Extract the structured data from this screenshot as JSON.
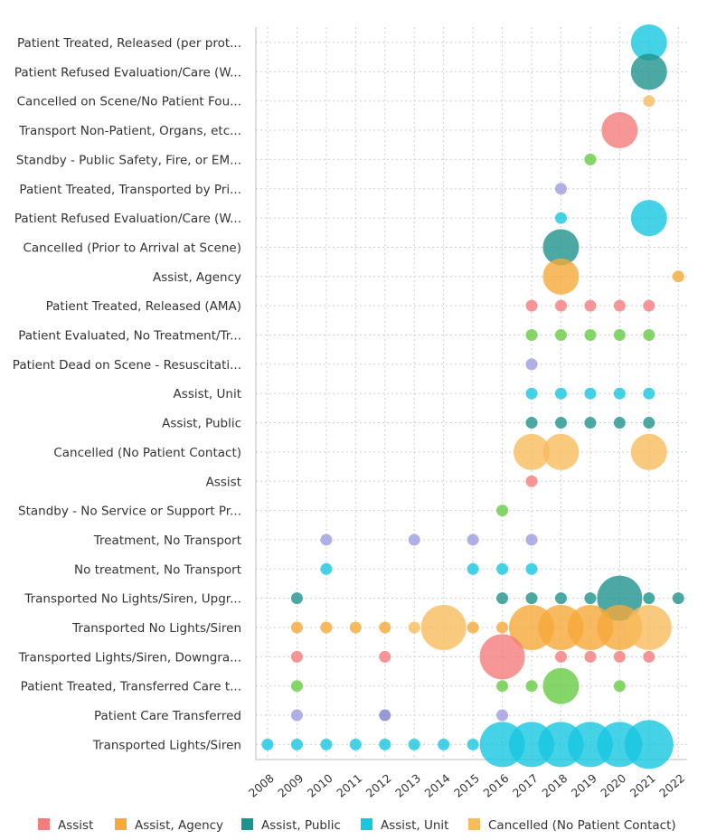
{
  "chart_data": {
    "type": "scatter",
    "subtype": "bubble",
    "categories": [
      "Patient Treated, Released (per prot...",
      "Patient Refused Evaluation/Care (W...",
      "Cancelled on Scene/No Patient Fou...",
      "Transport Non-Patient, Organs, etc...",
      "Standby - Public Safety, Fire, or EM...",
      "Patient Treated, Transported by Pri...",
      "Patient Refused Evaluation/Care (W...",
      "Cancelled (Prior to Arrival at Scene)",
      "Assist, Agency",
      "Patient Treated, Released (AMA)",
      "Patient Evaluated, No Treatment/Tr...",
      "Patient Dead on Scene - Resuscitati...",
      "Assist, Unit",
      "Assist, Public",
      "Cancelled (No Patient Contact)",
      "Assist",
      "Standby - No Service or Support Pr...",
      "Treatment, No Transport",
      "No treatment, No Transport",
      "Transported No Lights/Siren, Upgr...",
      "Transported No Lights/Siren",
      "Transported Lights/Siren, Downgra...",
      "Patient Treated, Transferred Care t...",
      "Patient Care Transferred",
      "Transported Lights/Siren"
    ],
    "x_ticks": [
      "2008",
      "2009",
      "2010",
      "2011",
      "2012",
      "2013",
      "2014",
      "2015",
      "2016",
      "2017",
      "2018",
      "2019",
      "2020",
      "2021",
      "2022"
    ],
    "xlim": [
      2007.6,
      2022.3
    ],
    "grid": true,
    "legend_position": "bottom",
    "series": [
      {
        "name": "Assist",
        "color": "#f47c7c"
      },
      {
        "name": "Assist, Agency",
        "color": "#f5a93a"
      },
      {
        "name": "Assist, Public",
        "color": "#1e928c"
      },
      {
        "name": "Assist, Unit",
        "color": "#17c7e0"
      },
      {
        "name": "Cancelled (No Patient Contact)",
        "color": "#f8bb5c"
      }
    ],
    "extra_colors": {
      "purple": "#9c9be0",
      "green": "#66cc44"
    },
    "points": [
      {
        "cat": 0,
        "year": 2021,
        "size": 4,
        "color": "#17c7e0"
      },
      {
        "cat": 1,
        "year": 2021,
        "size": 4,
        "color": "#1e928c"
      },
      {
        "cat": 2,
        "year": 2021,
        "size": 1,
        "color": "#f8bb5c"
      },
      {
        "cat": 3,
        "year": 2020,
        "size": 4,
        "color": "#f47c7c"
      },
      {
        "cat": 4,
        "year": 2019,
        "size": 1,
        "color": "#66cc44"
      },
      {
        "cat": 5,
        "year": 2018,
        "size": 1,
        "color": "#9c9be0"
      },
      {
        "cat": 6,
        "year": 2018,
        "size": 1,
        "color": "#17c7e0"
      },
      {
        "cat": 6,
        "year": 2021,
        "size": 4,
        "color": "#17c7e0"
      },
      {
        "cat": 7,
        "year": 2018,
        "size": 4,
        "color": "#1e928c"
      },
      {
        "cat": 8,
        "year": 2018,
        "size": 4,
        "color": "#f5a93a"
      },
      {
        "cat": 8,
        "year": 2022,
        "size": 1,
        "color": "#f5a93a"
      },
      {
        "cat": 9,
        "year": 2017,
        "size": 1,
        "color": "#f47c7c"
      },
      {
        "cat": 9,
        "year": 2018,
        "size": 1,
        "color": "#f47c7c"
      },
      {
        "cat": 9,
        "year": 2019,
        "size": 1,
        "color": "#f47c7c"
      },
      {
        "cat": 9,
        "year": 2020,
        "size": 1,
        "color": "#f47c7c"
      },
      {
        "cat": 9,
        "year": 2021,
        "size": 1,
        "color": "#f47c7c"
      },
      {
        "cat": 10,
        "year": 2017,
        "size": 1,
        "color": "#66cc44"
      },
      {
        "cat": 10,
        "year": 2018,
        "size": 1,
        "color": "#66cc44"
      },
      {
        "cat": 10,
        "year": 2019,
        "size": 1,
        "color": "#66cc44"
      },
      {
        "cat": 10,
        "year": 2020,
        "size": 1,
        "color": "#66cc44"
      },
      {
        "cat": 10,
        "year": 2021,
        "size": 1,
        "color": "#66cc44"
      },
      {
        "cat": 11,
        "year": 2017,
        "size": 1,
        "color": "#9c9be0"
      },
      {
        "cat": 12,
        "year": 2017,
        "size": 1,
        "color": "#17c7e0"
      },
      {
        "cat": 12,
        "year": 2018,
        "size": 1,
        "color": "#17c7e0"
      },
      {
        "cat": 12,
        "year": 2019,
        "size": 1,
        "color": "#17c7e0"
      },
      {
        "cat": 12,
        "year": 2020,
        "size": 1,
        "color": "#17c7e0"
      },
      {
        "cat": 12,
        "year": 2021,
        "size": 1,
        "color": "#17c7e0"
      },
      {
        "cat": 13,
        "year": 2017,
        "size": 1,
        "color": "#1e928c"
      },
      {
        "cat": 13,
        "year": 2018,
        "size": 1,
        "color": "#1e928c"
      },
      {
        "cat": 13,
        "year": 2019,
        "size": 1,
        "color": "#1e928c"
      },
      {
        "cat": 13,
        "year": 2020,
        "size": 1,
        "color": "#1e928c"
      },
      {
        "cat": 13,
        "year": 2021,
        "size": 1,
        "color": "#1e928c"
      },
      {
        "cat": 14,
        "year": 2017,
        "size": 4,
        "color": "#f8bb5c"
      },
      {
        "cat": 14,
        "year": 2018,
        "size": 4,
        "color": "#f8bb5c"
      },
      {
        "cat": 14,
        "year": 2021,
        "size": 4,
        "color": "#f8bb5c"
      },
      {
        "cat": 15,
        "year": 2017,
        "size": 1,
        "color": "#f47c7c"
      },
      {
        "cat": 16,
        "year": 2016,
        "size": 1,
        "color": "#66cc44"
      },
      {
        "cat": 17,
        "year": 2010,
        "size": 1,
        "color": "#9c9be0"
      },
      {
        "cat": 17,
        "year": 2013,
        "size": 1,
        "color": "#9c9be0"
      },
      {
        "cat": 17,
        "year": 2015,
        "size": 1,
        "color": "#9c9be0"
      },
      {
        "cat": 17,
        "year": 2017,
        "size": 1,
        "color": "#9c9be0"
      },
      {
        "cat": 18,
        "year": 2010,
        "size": 1,
        "color": "#17c7e0"
      },
      {
        "cat": 18,
        "year": 2015,
        "size": 1,
        "color": "#17c7e0"
      },
      {
        "cat": 18,
        "year": 2016,
        "size": 1,
        "color": "#17c7e0"
      },
      {
        "cat": 18,
        "year": 2017,
        "size": 1,
        "color": "#17c7e0"
      },
      {
        "cat": 19,
        "year": 2009,
        "size": 1,
        "color": "#1e928c"
      },
      {
        "cat": 19,
        "year": 2016,
        "size": 1,
        "color": "#1e928c"
      },
      {
        "cat": 19,
        "year": 2017,
        "size": 1,
        "color": "#1e928c"
      },
      {
        "cat": 19,
        "year": 2018,
        "size": 1,
        "color": "#1e928c"
      },
      {
        "cat": 19,
        "year": 2019,
        "size": 1,
        "color": "#1e928c"
      },
      {
        "cat": 19,
        "year": 2020,
        "size": 5,
        "color": "#1e928c"
      },
      {
        "cat": 19,
        "year": 2021,
        "size": 1,
        "color": "#1e928c"
      },
      {
        "cat": 19,
        "year": 2022,
        "size": 1,
        "color": "#1e928c"
      },
      {
        "cat": 20,
        "year": 2009,
        "size": 1,
        "color": "#f5a93a"
      },
      {
        "cat": 20,
        "year": 2010,
        "size": 1,
        "color": "#f5a93a"
      },
      {
        "cat": 20,
        "year": 2011,
        "size": 1,
        "color": "#f5a93a"
      },
      {
        "cat": 20,
        "year": 2012,
        "size": 1,
        "color": "#f5a93a"
      },
      {
        "cat": 20,
        "year": 2013,
        "size": 1,
        "color": "#f8bb5c"
      },
      {
        "cat": 20,
        "year": 2014,
        "size": 5,
        "color": "#f8bb5c"
      },
      {
        "cat": 20,
        "year": 2015,
        "size": 1,
        "color": "#f5a93a"
      },
      {
        "cat": 20,
        "year": 2016,
        "size": 1,
        "color": "#f5a93a"
      },
      {
        "cat": 20,
        "year": 2017,
        "size": 5,
        "color": "#f5a93a"
      },
      {
        "cat": 20,
        "year": 2018,
        "size": 5,
        "color": "#f5a93a"
      },
      {
        "cat": 20,
        "year": 2019,
        "size": 5,
        "color": "#f5a93a"
      },
      {
        "cat": 20,
        "year": 2020,
        "size": 5,
        "color": "#f5a93a"
      },
      {
        "cat": 20,
        "year": 2021,
        "size": 5,
        "color": "#f8bb5c"
      },
      {
        "cat": 21,
        "year": 2009,
        "size": 1,
        "color": "#f47c7c"
      },
      {
        "cat": 21,
        "year": 2012,
        "size": 1,
        "color": "#f47c7c"
      },
      {
        "cat": 21,
        "year": 2016,
        "size": 5,
        "color": "#f47c7c"
      },
      {
        "cat": 21,
        "year": 2018,
        "size": 1,
        "color": "#f47c7c"
      },
      {
        "cat": 21,
        "year": 2019,
        "size": 1,
        "color": "#f47c7c"
      },
      {
        "cat": 21,
        "year": 2020,
        "size": 1,
        "color": "#f47c7c"
      },
      {
        "cat": 21,
        "year": 2021,
        "size": 1,
        "color": "#f47c7c"
      },
      {
        "cat": 22,
        "year": 2009,
        "size": 1,
        "color": "#66cc44"
      },
      {
        "cat": 22,
        "year": 2016,
        "size": 1,
        "color": "#66cc44"
      },
      {
        "cat": 22,
        "year": 2017,
        "size": 1,
        "color": "#66cc44"
      },
      {
        "cat": 22,
        "year": 2018,
        "size": 4,
        "color": "#66cc44"
      },
      {
        "cat": 22,
        "year": 2020,
        "size": 1,
        "color": "#66cc44"
      },
      {
        "cat": 23,
        "year": 2009,
        "size": 1,
        "color": "#9c9be0"
      },
      {
        "cat": 23,
        "year": 2012,
        "size": 1,
        "color": "#7f7fcc"
      },
      {
        "cat": 23,
        "year": 2016,
        "size": 1,
        "color": "#9c9be0"
      },
      {
        "cat": 24,
        "year": 2008,
        "size": 1,
        "color": "#17c7e0"
      },
      {
        "cat": 24,
        "year": 2009,
        "size": 1,
        "color": "#17c7e0"
      },
      {
        "cat": 24,
        "year": 2010,
        "size": 1,
        "color": "#17c7e0"
      },
      {
        "cat": 24,
        "year": 2011,
        "size": 1,
        "color": "#17c7e0"
      },
      {
        "cat": 24,
        "year": 2012,
        "size": 1,
        "color": "#17c7e0"
      },
      {
        "cat": 24,
        "year": 2013,
        "size": 1,
        "color": "#17c7e0"
      },
      {
        "cat": 24,
        "year": 2014,
        "size": 1,
        "color": "#17c7e0"
      },
      {
        "cat": 24,
        "year": 2015,
        "size": 1,
        "color": "#17c7e0"
      },
      {
        "cat": 24,
        "year": 2016,
        "size": 5,
        "color": "#17c7e0"
      },
      {
        "cat": 24,
        "year": 2017,
        "size": 5,
        "color": "#17c7e0"
      },
      {
        "cat": 24,
        "year": 2018,
        "size": 5,
        "color": "#17c7e0"
      },
      {
        "cat": 24,
        "year": 2019,
        "size": 5,
        "color": "#17c7e0"
      },
      {
        "cat": 24,
        "year": 2020,
        "size": 5,
        "color": "#17c7e0"
      },
      {
        "cat": 24,
        "year": 2021,
        "size": 6,
        "color": "#17c7e0"
      }
    ]
  }
}
